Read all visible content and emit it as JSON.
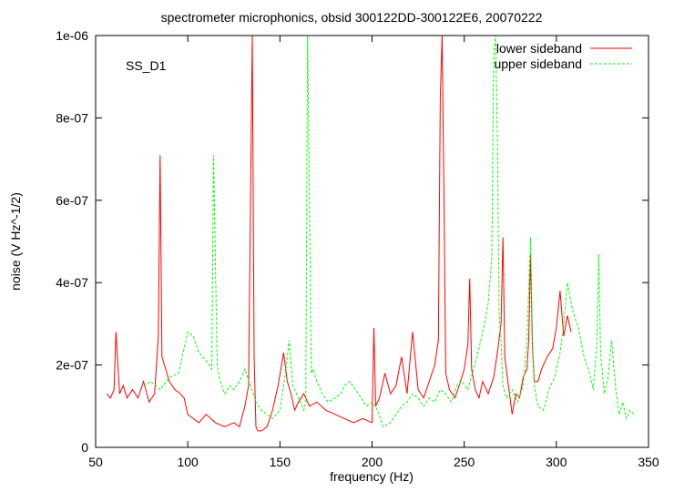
{
  "chart_data": {
    "type": "line",
    "title": "spectrometer microphonics, obsid 300122DD-300122E6, 20070222",
    "annotation": "SS_D1",
    "xlabel": "frequency (Hz)",
    "ylabel": "noise (V Hz^-1/2)",
    "xlim": [
      50,
      350
    ],
    "ylim": [
      0,
      1e-06
    ],
    "x_ticks": [
      50,
      100,
      150,
      200,
      250,
      300,
      350
    ],
    "y_ticks": [
      0,
      2e-07,
      4e-07,
      6e-07,
      8e-07,
      1e-06
    ],
    "x_tick_labels": [
      "50",
      "100",
      "150",
      "200",
      "250",
      "300",
      "350"
    ],
    "y_tick_labels": [
      "0",
      "2e-07",
      "4e-07",
      "6e-07",
      "8e-07",
      "1e-06"
    ],
    "legend_position": "top-right",
    "grid": false,
    "series": [
      {
        "name": "lower sideband",
        "color": "#ff0000",
        "dash": "solid",
        "x": [
          56,
          58,
          60,
          61,
          63,
          65,
          67,
          70,
          73,
          76,
          79,
          82,
          84,
          85,
          86,
          88,
          90,
          93,
          96,
          98,
          100,
          103,
          106,
          110,
          115,
          120,
          125,
          128,
          131,
          133,
          134,
          135,
          136,
          137,
          138,
          140,
          143,
          146,
          149,
          152,
          154,
          156,
          158,
          160,
          163,
          166,
          170,
          175,
          180,
          185,
          190,
          195,
          200,
          201,
          202,
          204,
          207,
          210,
          213,
          216,
          219,
          222,
          225,
          228,
          231,
          234,
          236,
          237,
          238,
          239,
          240,
          242,
          245,
          248,
          250,
          252,
          253,
          254,
          256,
          258,
          260,
          263,
          266,
          268,
          270,
          271,
          272,
          274,
          276,
          278,
          280,
          282,
          284,
          285,
          286,
          287,
          288,
          290,
          292,
          295,
          298,
          300,
          302,
          304,
          306,
          308
        ],
        "y": [
          1.3e-07,
          1.2e-07,
          1.4e-07,
          2.8e-07,
          1.3e-07,
          1.5e-07,
          1.2e-07,
          1.4e-07,
          1.2e-07,
          1.6e-07,
          1.1e-07,
          1.3e-07,
          2.7e-07,
          7.1e-07,
          2.2e-07,
          1.9e-07,
          1.6e-07,
          1.4e-07,
          1.3e-07,
          1.2e-07,
          8e-08,
          7e-08,
          6e-08,
          8e-08,
          6e-08,
          5e-08,
          6e-08,
          5e-08,
          1e-07,
          1.5e-07,
          5.9e-07,
          1e-06,
          2.2e-07,
          5e-08,
          4e-08,
          4e-08,
          5e-08,
          9e-08,
          1.5e-07,
          2.3e-07,
          1.6e-07,
          1.3e-07,
          9e-08,
          1.1e-07,
          1.3e-07,
          1e-07,
          1.1e-07,
          9e-08,
          8e-08,
          7e-08,
          6e-08,
          7e-08,
          6e-08,
          2.9e-07,
          1e-07,
          1.2e-07,
          1.8e-07,
          1.3e-07,
          1.5e-07,
          2.2e-07,
          1.3e-07,
          2.8e-07,
          1.4e-07,
          1.2e-07,
          1.6e-07,
          2e-07,
          2.6e-07,
          8.5e-07,
          1e-06,
          6.2e-07,
          1.8e-07,
          1.4e-07,
          1.2e-07,
          1.6e-07,
          1.9e-07,
          2.5e-07,
          4.1e-07,
          1.9e-07,
          1.4e-07,
          1.2e-07,
          1.6e-07,
          1.3e-07,
          1.7e-07,
          2.3e-07,
          3e-07,
          5.1e-07,
          2.2e-07,
          1.5e-07,
          8e-08,
          1.3e-07,
          1.2e-07,
          1.7e-07,
          1.9e-07,
          2.6e-07,
          4.7e-07,
          2.5e-07,
          1.6e-07,
          1.6e-07,
          1.9e-07,
          2.2e-07,
          2.4e-07,
          2.9e-07,
          3.8e-07,
          2.7e-07,
          3.2e-07,
          2.8e-07
        ]
      },
      {
        "name": "upper sideband",
        "color": "#00ff00",
        "dash": "dashed",
        "x": [
          76,
          80,
          85,
          90,
          95,
          100,
          103,
          106,
          110,
          113,
          114,
          115,
          116,
          117,
          120,
          123,
          125,
          128,
          131,
          134,
          137,
          140,
          143,
          146,
          150,
          153,
          155,
          157,
          160,
          163,
          164,
          165,
          166,
          167,
          168,
          170,
          173,
          176,
          180,
          183,
          185,
          188,
          191,
          194,
          197,
          200,
          203,
          206,
          210,
          213,
          216,
          219,
          222,
          225,
          228,
          231,
          234,
          237,
          240,
          243,
          246,
          249,
          252,
          255,
          258,
          261,
          263,
          265,
          266,
          267,
          268,
          269,
          270,
          271,
          273,
          276,
          279,
          282,
          284,
          286,
          287,
          288,
          290,
          293,
          296,
          299,
          302,
          304,
          306,
          309,
          312,
          315,
          318,
          320,
          322,
          323,
          324,
          326,
          328,
          330,
          332,
          334,
          336,
          338,
          340,
          342
        ],
        "y": [
          1.5e-07,
          1.6e-07,
          1.4e-07,
          1.7e-07,
          1.8e-07,
          2.8e-07,
          2.7e-07,
          2.3e-07,
          2.1e-07,
          1.9e-07,
          7.1e-07,
          4.5e-07,
          2e-07,
          1.7e-07,
          1.3e-07,
          1.5e-07,
          1.4e-07,
          1.6e-07,
          1.9e-07,
          1.5e-07,
          1.1e-07,
          9e-08,
          8e-08,
          7e-08,
          9e-08,
          1.8e-07,
          2.6e-07,
          1.5e-07,
          1.2e-07,
          9e-08,
          1.1e-07,
          1e-06,
          6.3e-07,
          1.8e-07,
          1.9e-07,
          1.6e-07,
          1.3e-07,
          1.1e-07,
          1.2e-07,
          1.3e-07,
          1.5e-07,
          1.6e-07,
          1.4e-07,
          1.2e-07,
          1e-07,
          1.1e-07,
          9e-08,
          5e-08,
          6e-08,
          8e-08,
          1e-07,
          1.1e-07,
          1.3e-07,
          1.2e-07,
          1e-07,
          1.2e-07,
          1.1e-07,
          1.4e-07,
          1.3e-07,
          1.1e-07,
          1.5e-07,
          1.6e-07,
          1.4e-07,
          1.9e-07,
          2.4e-07,
          3e-07,
          3.5e-07,
          4.6e-07,
          9.5e-07,
          1e-06,
          7.5e-07,
          3.2e-07,
          2.6e-07,
          1.5e-07,
          1.2e-07,
          1.4e-07,
          1.1e-07,
          1.5e-07,
          2.6e-07,
          5.1e-07,
          2.7e-07,
          1.5e-07,
          1e-07,
          9e-08,
          1.4e-07,
          1.7e-07,
          2.3e-07,
          3e-07,
          4e-07,
          3.3e-07,
          2.9e-07,
          2.2e-07,
          1.8e-07,
          1.4e-07,
          2.5e-07,
          4.7e-07,
          2.3e-07,
          1.3e-07,
          1.7e-07,
          2.6e-07,
          1.5e-07,
          8e-08,
          1.1e-07,
          7e-08,
          9e-08,
          8e-08
        ]
      }
    ]
  }
}
